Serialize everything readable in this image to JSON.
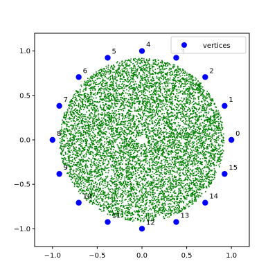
{
  "chart_data": {
    "type": "scatter",
    "title": "",
    "xlabel": "",
    "ylabel": "",
    "xlim": [
      -1.2,
      1.2
    ],
    "ylim": [
      -1.2,
      1.2
    ],
    "xticks": [
      "−1.0",
      "−0.5",
      "0.0",
      "0.5",
      "1.0"
    ],
    "xtick_values": [
      -1.0,
      -0.5,
      0.0,
      0.5,
      1.0
    ],
    "yticks": [
      "−1.0",
      "−0.5",
      "0.0",
      "0.5",
      "1.0"
    ],
    "ytick_values": [
      -1.0,
      -0.5,
      0.0,
      0.5,
      1.0
    ],
    "grid": false,
    "legend": {
      "position": "upper right",
      "entries": [
        "vertices"
      ]
    },
    "series": [
      {
        "name": "vertices",
        "color": "#0000ff",
        "points": [
          {
            "label": "0",
            "x": 1.0,
            "y": 0.0
          },
          {
            "label": "1",
            "x": 0.924,
            "y": 0.383
          },
          {
            "label": "2",
            "x": 0.707,
            "y": 0.707
          },
          {
            "label": "3",
            "x": 0.383,
            "y": 0.924
          },
          {
            "label": "4",
            "x": 0.0,
            "y": 1.0
          },
          {
            "label": "5",
            "x": -0.383,
            "y": 0.924
          },
          {
            "label": "6",
            "x": -0.707,
            "y": 0.707
          },
          {
            "label": "7",
            "x": -0.924,
            "y": 0.383
          },
          {
            "label": "8",
            "x": -1.0,
            "y": 0.0
          },
          {
            "label": "9",
            "x": -0.924,
            "y": -0.383
          },
          {
            "label": "10",
            "x": -0.707,
            "y": -0.707
          },
          {
            "label": "11",
            "x": -0.383,
            "y": -0.924
          },
          {
            "label": "12",
            "x": 0.0,
            "y": -1.0
          },
          {
            "label": "13",
            "x": 0.383,
            "y": -0.924
          },
          {
            "label": "14",
            "x": 0.707,
            "y": -0.707
          },
          {
            "label": "15",
            "x": 0.924,
            "y": -0.383
          }
        ]
      },
      {
        "color": "#008000",
        "distribution": {
          "shape": "annulus",
          "inner_radius": 0.05,
          "outer_radius": 0.92
        }
      }
    ]
  }
}
